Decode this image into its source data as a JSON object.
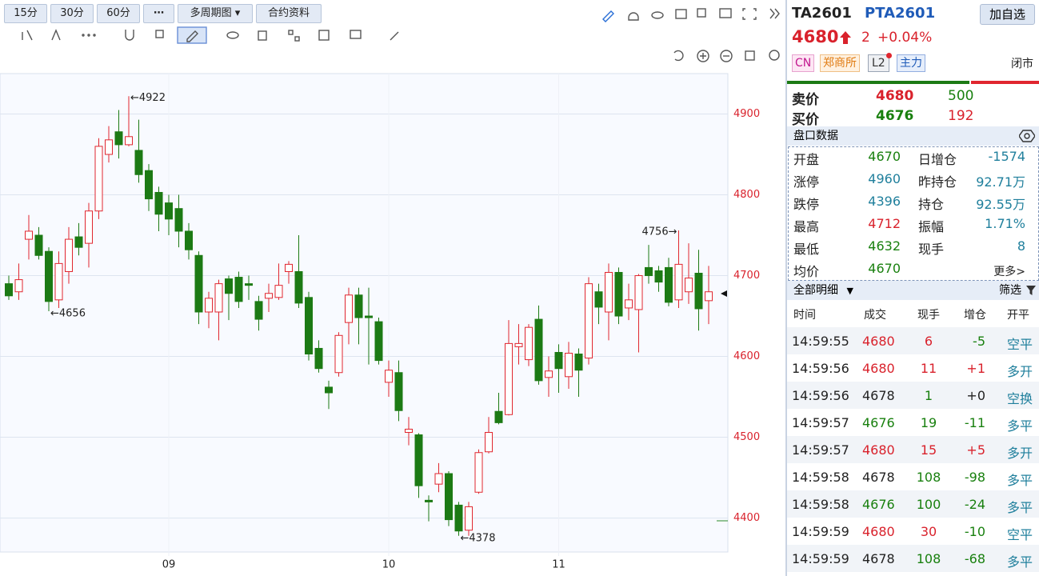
{
  "toolbar": {
    "periods": [
      "15分",
      "30分",
      "60分"
    ],
    "multi": "多周期图",
    "info": "合约资料"
  },
  "chart_data": {
    "type": "candlestick",
    "categories": [
      null,
      null,
      null,
      null,
      null,
      null,
      null,
      null,
      null,
      null,
      null,
      null,
      null,
      null,
      null,
      null,
      "09",
      null,
      null,
      null,
      null,
      null,
      null,
      null,
      null,
      null,
      null,
      null,
      null,
      null,
      null,
      null,
      null,
      null,
      null,
      null,
      null,
      null,
      "10",
      null,
      null,
      null,
      null,
      null,
      null,
      null,
      null,
      null,
      null,
      null,
      null,
      null,
      null,
      null,
      null,
      "11",
      null,
      null,
      null,
      null,
      null,
      null,
      null,
      null,
      null,
      null,
      null,
      null,
      null,
      null,
      null
    ],
    "open": [
      4690,
      4680,
      4745,
      4750,
      4730,
      4670,
      4705,
      4748,
      4740,
      4780,
      4850,
      4878,
      4862,
      4855,
      4830,
      4803,
      4790,
      4783,
      4755,
      4725,
      4655,
      4655,
      4696,
      4698,
      4690,
      4668,
      4672,
      4673,
      4705,
      4705,
      4673,
      4610,
      4562,
      4580,
      4642,
      4676,
      4650,
      4643,
      4568,
      4580,
      4506,
      4503,
      4422,
      4442,
      4455,
      4416,
      4385,
      4432,
      4482,
      4532,
      4528,
      4612,
      4596,
      4646,
      4574,
      4605,
      4575,
      4603,
      4598,
      4680,
      4655,
      4704,
      4660,
      4658,
      4710,
      4706,
      4710,
      4670,
      4680,
      4703,
      4669
    ],
    "high": [
      4700,
      4715,
      4775,
      4760,
      4735,
      4730,
      4760,
      4765,
      4790,
      4870,
      4885,
      4905,
      4922,
      4893,
      4838,
      4810,
      4800,
      4800,
      4765,
      4730,
      4680,
      4695,
      4700,
      4705,
      4700,
      4675,
      4690,
      4715,
      4718,
      4750,
      4680,
      4620,
      4570,
      4630,
      4685,
      4685,
      4685,
      4648,
      4595,
      4595,
      4525,
      4505,
      4428,
      4468,
      4458,
      4420,
      4420,
      4485,
      4525,
      4555,
      4645,
      4640,
      4640,
      4663,
      4600,
      4615,
      4618,
      4610,
      4698,
      4690,
      4715,
      4710,
      4690,
      4702,
      4738,
      4712,
      4722,
      4756,
      4740,
      4732,
      4712
    ],
    "low": [
      4670,
      4670,
      4720,
      4720,
      4656,
      4660,
      4690,
      4725,
      4710,
      4770,
      4840,
      4845,
      4860,
      4815,
      4780,
      4755,
      4750,
      4735,
      4720,
      4640,
      4635,
      4620,
      4645,
      4660,
      4670,
      4632,
      4655,
      4670,
      4690,
      4660,
      4595,
      4580,
      4535,
      4575,
      4615,
      4615,
      4590,
      4590,
      4550,
      4520,
      4490,
      4425,
      4396,
      4432,
      4390,
      4378,
      4378,
      4430,
      4480,
      4516,
      4527,
      4590,
      4588,
      4565,
      4550,
      4555,
      4560,
      4550,
      4590,
      4640,
      4620,
      4640,
      4645,
      4605,
      4690,
      4680,
      4662,
      4660,
      4665,
      4632,
      4640
    ],
    "close": [
      4675,
      4695,
      4755,
      4725,
      4668,
      4715,
      4745,
      4735,
      4780,
      4860,
      4868,
      4862,
      4872,
      4825,
      4795,
      4776,
      4770,
      4755,
      4732,
      4655,
      4672,
      4690,
      4678,
      4668,
      4688,
      4646,
      4678,
      4688,
      4714,
      4666,
      4603,
      4585,
      4555,
      4626,
      4676,
      4648,
      4648,
      4595,
      4583,
      4533,
      4510,
      4440,
      4420,
      4455,
      4398,
      4384,
      4414,
      4481,
      4506,
      4518,
      4616,
      4616,
      4636,
      4570,
      4582,
      4585,
      4604,
      4583,
      4690,
      4661,
      4704,
      4650,
      4670,
      4700,
      4700,
      4692,
      4667,
      4714,
      4697,
      4659,
      4680
    ],
    "colors": {
      "up": "#e0262f",
      "down": "#1c7a14"
    },
    "ylim": [
      4358,
      4950
    ],
    "yticks": [
      4400,
      4500,
      4600,
      4700,
      4800,
      4900
    ],
    "grid": true,
    "annotations": [
      "←4922",
      "←4656",
      "←4378",
      "4756→"
    ]
  },
  "quote": {
    "code": "TA2601",
    "name": "PTA2601",
    "watch": "加自选",
    "price": "4680",
    "change": "2",
    "pct": "+0.04%",
    "tags": [
      "CN",
      "郑商所",
      "L2",
      "主力"
    ],
    "status": "闭市"
  },
  "book": [
    [
      "卖价",
      "4680",
      "500"
    ],
    [
      "买价",
      "4676",
      "192"
    ]
  ],
  "stats": {
    "title": "盘口数据",
    "rows": [
      [
        "开盘",
        "4670",
        "日增仓",
        "-1574"
      ],
      [
        "涨停",
        "4960",
        "昨持仓",
        "92.71万"
      ],
      [
        "跌停",
        "4396",
        "持仓",
        "92.55万"
      ],
      [
        "最高",
        "4712",
        "振幅",
        "1.71%"
      ],
      [
        "最低",
        "4632",
        "现手",
        "8"
      ],
      [
        "均价",
        "4670",
        "更多>"
      ]
    ]
  },
  "trades": {
    "title": "全部明细",
    "filter": "筛选",
    "headers": [
      "时间",
      "成交",
      "现手",
      "增仓",
      "开平"
    ],
    "rows": [
      [
        "14:59:55",
        "4680",
        "6",
        "-5",
        "空平"
      ],
      [
        "14:59:56",
        "4680",
        "11",
        "+1",
        "多开"
      ],
      [
        "14:59:56",
        "4678",
        "1",
        "+0",
        "空换"
      ],
      [
        "14:59:57",
        "4676",
        "19",
        "-11",
        "多平"
      ],
      [
        "14:59:57",
        "4680",
        "15",
        "+5",
        "多开"
      ],
      [
        "14:59:58",
        "4678",
        "108",
        "-98",
        "多平"
      ],
      [
        "14:59:58",
        "4676",
        "100",
        "-24",
        "多平"
      ],
      [
        "14:59:59",
        "4680",
        "30",
        "-10",
        "空平"
      ],
      [
        "14:59:59",
        "4678",
        "108",
        "-68",
        "多平"
      ]
    ]
  }
}
